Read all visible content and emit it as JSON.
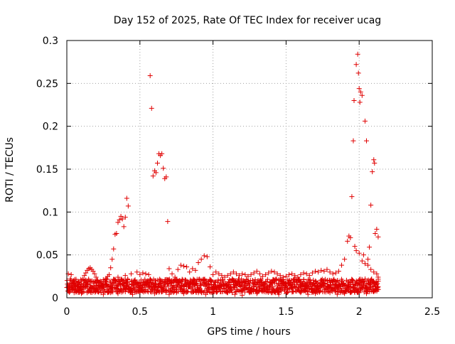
{
  "chart_data": {
    "type": "scatter",
    "title": "Day 152 of 2025, Rate Of TEC Index for receiver ucag",
    "xlabel": "GPS time / hours",
    "ylabel": "ROTI / TECUs",
    "xlim": [
      0,
      2.5
    ],
    "ylim": [
      0,
      0.3
    ],
    "x_ticks": [
      0,
      0.5,
      1,
      1.5,
      2,
      2.5
    ],
    "x_tick_labels": [
      "0",
      "0.5",
      "1",
      "1.5",
      "2",
      "2.5"
    ],
    "y_ticks": [
      0,
      0.05,
      0.1,
      0.15,
      0.2,
      0.25,
      0.3
    ],
    "y_tick_labels": [
      "0",
      "0.05",
      "0.1",
      "0.15",
      "0.2",
      "0.25",
      "0.3"
    ],
    "grid": true,
    "marker": "+",
    "marker_color": "#e00000",
    "series": [
      {
        "name": "ROTI",
        "points": [
          [
            0.0,
            0.012
          ],
          [
            0.01,
            0.028
          ],
          [
            0.02,
            0.015
          ],
          [
            0.02,
            0.009
          ],
          [
            0.03,
            0.027
          ],
          [
            0.04,
            0.013
          ],
          [
            0.05,
            0.018
          ],
          [
            0.06,
            0.011
          ],
          [
            0.07,
            0.014
          ],
          [
            0.08,
            0.016
          ],
          [
            0.09,
            0.01
          ],
          [
            0.1,
            0.02
          ],
          [
            0.11,
            0.022
          ],
          [
            0.12,
            0.026
          ],
          [
            0.13,
            0.029
          ],
          [
            0.14,
            0.032
          ],
          [
            0.15,
            0.034
          ],
          [
            0.16,
            0.035
          ],
          [
            0.17,
            0.033
          ],
          [
            0.18,
            0.031
          ],
          [
            0.19,
            0.028
          ],
          [
            0.2,
            0.024
          ],
          [
            0.21,
            0.02
          ],
          [
            0.22,
            0.017
          ],
          [
            0.23,
            0.015
          ],
          [
            0.24,
            0.014
          ],
          [
            0.25,
            0.016
          ],
          [
            0.26,
            0.019
          ],
          [
            0.27,
            0.022
          ],
          [
            0.28,
            0.025
          ],
          [
            0.29,
            0.027
          ],
          [
            0.3,
            0.035
          ],
          [
            0.31,
            0.045
          ],
          [
            0.32,
            0.057
          ],
          [
            0.33,
            0.074
          ],
          [
            0.34,
            0.075
          ],
          [
            0.35,
            0.088
          ],
          [
            0.36,
            0.091
          ],
          [
            0.37,
            0.095
          ],
          [
            0.38,
            0.092
          ],
          [
            0.39,
            0.083
          ],
          [
            0.4,
            0.094
          ],
          [
            0.41,
            0.116
          ],
          [
            0.42,
            0.107
          ],
          [
            0.35,
            0.024
          ],
          [
            0.4,
            0.026
          ],
          [
            0.44,
            0.028
          ],
          [
            0.46,
            0.02
          ],
          [
            0.48,
            0.03
          ],
          [
            0.5,
            0.027
          ],
          [
            0.52,
            0.029
          ],
          [
            0.54,
            0.028
          ],
          [
            0.56,
            0.027
          ],
          [
            0.57,
            0.259
          ],
          [
            0.58,
            0.221
          ],
          [
            0.59,
            0.142
          ],
          [
            0.6,
            0.148
          ],
          [
            0.61,
            0.146
          ],
          [
            0.62,
            0.157
          ],
          [
            0.63,
            0.168
          ],
          [
            0.64,
            0.166
          ],
          [
            0.65,
            0.168
          ],
          [
            0.66,
            0.151
          ],
          [
            0.67,
            0.139
          ],
          [
            0.68,
            0.141
          ],
          [
            0.69,
            0.089
          ],
          [
            0.7,
            0.034
          ],
          [
            0.72,
            0.028
          ],
          [
            0.74,
            0.024
          ],
          [
            0.76,
            0.033
          ],
          [
            0.78,
            0.038
          ],
          [
            0.8,
            0.037
          ],
          [
            0.82,
            0.036
          ],
          [
            0.84,
            0.03
          ],
          [
            0.86,
            0.034
          ],
          [
            0.88,
            0.032
          ],
          [
            0.9,
            0.041
          ],
          [
            0.92,
            0.045
          ],
          [
            0.94,
            0.049
          ],
          [
            0.96,
            0.048
          ],
          [
            0.98,
            0.036
          ],
          [
            1.0,
            0.027
          ],
          [
            1.02,
            0.03
          ],
          [
            1.04,
            0.028
          ],
          [
            1.06,
            0.026
          ],
          [
            1.08,
            0.024
          ],
          [
            1.1,
            0.026
          ],
          [
            1.12,
            0.028
          ],
          [
            1.14,
            0.03
          ],
          [
            1.16,
            0.028
          ],
          [
            1.18,
            0.026
          ],
          [
            1.2,
            0.028
          ],
          [
            1.22,
            0.027
          ],
          [
            1.24,
            0.025
          ],
          [
            1.26,
            0.027
          ],
          [
            1.28,
            0.029
          ],
          [
            1.3,
            0.031
          ],
          [
            1.32,
            0.028
          ],
          [
            1.34,
            0.025
          ],
          [
            1.36,
            0.027
          ],
          [
            1.38,
            0.029
          ],
          [
            1.4,
            0.031
          ],
          [
            1.42,
            0.03
          ],
          [
            1.44,
            0.028
          ],
          [
            1.46,
            0.026
          ],
          [
            1.48,
            0.024
          ],
          [
            1.5,
            0.025
          ],
          [
            1.52,
            0.027
          ],
          [
            1.54,
            0.028
          ],
          [
            1.56,
            0.026
          ],
          [
            1.58,
            0.024
          ],
          [
            1.6,
            0.027
          ],
          [
            1.62,
            0.029
          ],
          [
            1.64,
            0.028
          ],
          [
            1.66,
            0.026
          ],
          [
            1.68,
            0.029
          ],
          [
            1.7,
            0.031
          ],
          [
            1.72,
            0.03
          ],
          [
            1.74,
            0.032
          ],
          [
            1.76,
            0.031
          ],
          [
            1.78,
            0.033
          ],
          [
            1.8,
            0.03
          ],
          [
            1.82,
            0.028
          ],
          [
            1.84,
            0.029
          ],
          [
            1.86,
            0.031
          ],
          [
            1.88,
            0.038
          ],
          [
            1.9,
            0.045
          ],
          [
            1.92,
            0.066
          ],
          [
            1.93,
            0.072
          ],
          [
            1.94,
            0.07
          ],
          [
            1.95,
            0.118
          ],
          [
            1.96,
            0.183
          ],
          [
            1.965,
            0.23
          ],
          [
            1.97,
            0.06
          ],
          [
            1.98,
            0.272
          ],
          [
            1.99,
            0.284
          ],
          [
            1.995,
            0.262
          ],
          [
            2.0,
            0.244
          ],
          [
            2.005,
            0.228
          ],
          [
            2.01,
            0.24
          ],
          [
            2.02,
            0.236
          ],
          [
            2.03,
            0.05
          ],
          [
            2.04,
            0.206
          ],
          [
            2.05,
            0.183
          ],
          [
            2.06,
            0.045
          ],
          [
            2.07,
            0.059
          ],
          [
            2.08,
            0.108
          ],
          [
            2.09,
            0.147
          ],
          [
            2.1,
            0.161
          ],
          [
            2.105,
            0.157
          ],
          [
            2.11,
            0.075
          ],
          [
            2.12,
            0.08
          ],
          [
            2.13,
            0.071
          ],
          [
            1.98,
            0.055
          ],
          [
            2.0,
            0.052
          ],
          [
            2.02,
            0.043
          ],
          [
            2.04,
            0.04
          ],
          [
            2.06,
            0.038
          ],
          [
            2.08,
            0.033
          ],
          [
            2.1,
            0.03
          ],
          [
            2.12,
            0.028
          ],
          [
            2.13,
            0.024
          ],
          [
            0.05,
            0.006
          ],
          [
            0.1,
            0.005
          ],
          [
            0.15,
            0.007
          ],
          [
            0.2,
            0.008
          ],
          [
            0.25,
            0.004
          ],
          [
            0.3,
            0.006
          ],
          [
            0.35,
            0.005
          ],
          [
            0.4,
            0.007
          ],
          [
            0.45,
            0.004
          ],
          [
            0.5,
            0.006
          ],
          [
            0.55,
            0.008
          ],
          [
            0.6,
            0.005
          ],
          [
            0.65,
            0.007
          ],
          [
            0.7,
            0.004
          ],
          [
            0.75,
            0.006
          ],
          [
            0.8,
            0.005
          ],
          [
            0.85,
            0.007
          ],
          [
            0.9,
            0.006
          ],
          [
            0.95,
            0.004
          ],
          [
            1.0,
            0.005
          ],
          [
            1.05,
            0.007
          ],
          [
            1.1,
            0.006
          ],
          [
            1.15,
            0.004
          ],
          [
            1.2,
            0.003
          ],
          [
            1.25,
            0.006
          ],
          [
            1.3,
            0.005
          ],
          [
            1.35,
            0.007
          ],
          [
            1.4,
            0.006
          ],
          [
            1.45,
            0.004
          ],
          [
            1.5,
            0.005
          ],
          [
            1.55,
            0.007
          ],
          [
            1.6,
            0.006
          ],
          [
            1.65,
            0.004
          ],
          [
            1.7,
            0.005
          ],
          [
            1.75,
            0.007
          ],
          [
            1.8,
            0.006
          ],
          [
            1.85,
            0.004
          ],
          [
            1.9,
            0.005
          ],
          [
            1.95,
            0.007
          ],
          [
            2.0,
            0.006
          ],
          [
            2.05,
            0.005
          ],
          [
            2.1,
            0.007
          ],
          [
            2.12,
            0.01
          ],
          [
            2.13,
            0.013
          ]
        ],
        "baseline_band": {
          "x_start": 0.0,
          "x_end": 2.13,
          "x_step": 0.005,
          "y_min": 0.006,
          "y_max": 0.022
        }
      }
    ]
  }
}
